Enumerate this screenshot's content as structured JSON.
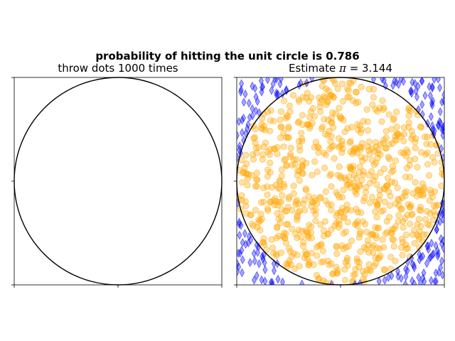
{
  "figure": {
    "suptitle": "probability of hitting the unit circle is 0.786"
  },
  "chart_data": [
    {
      "type": "line",
      "title": "throw dots 1000 times",
      "xlim": [
        -1,
        1
      ],
      "ylim": [
        -1,
        1
      ],
      "grid": false,
      "tick_labels_shown": false,
      "xticks": [
        -1,
        0,
        1
      ],
      "yticks": [
        -1,
        0,
        1
      ],
      "series": [
        {
          "shape": "unit-circle",
          "center": [
            0,
            0
          ],
          "radius": 1,
          "color": "#000000"
        }
      ]
    },
    {
      "type": "scatter",
      "title_prefix": "Estimate ",
      "title_symbol": "π",
      "title_suffix": " = 3.144",
      "xlim": [
        -1,
        1
      ],
      "ylim": [
        -1,
        1
      ],
      "grid": false,
      "tick_labels_shown": false,
      "xticks": [
        -1,
        0,
        1
      ],
      "yticks": [
        -1,
        0,
        1
      ],
      "throws": 1000,
      "inside_count": 786,
      "outside_count": 214,
      "probability_inside": 0.786,
      "pi_estimate": 3.144,
      "series": [
        {
          "group": "inside",
          "marker": "circle",
          "color": "#ffa500",
          "alpha": 0.35,
          "count": 786
        },
        {
          "group": "outside",
          "marker": "thin-diamond",
          "color": "#0000ff",
          "alpha": 0.35,
          "count": 214
        },
        {
          "shape": "unit-circle",
          "center": [
            0,
            0
          ],
          "radius": 1,
          "color": "#000000"
        }
      ]
    }
  ]
}
